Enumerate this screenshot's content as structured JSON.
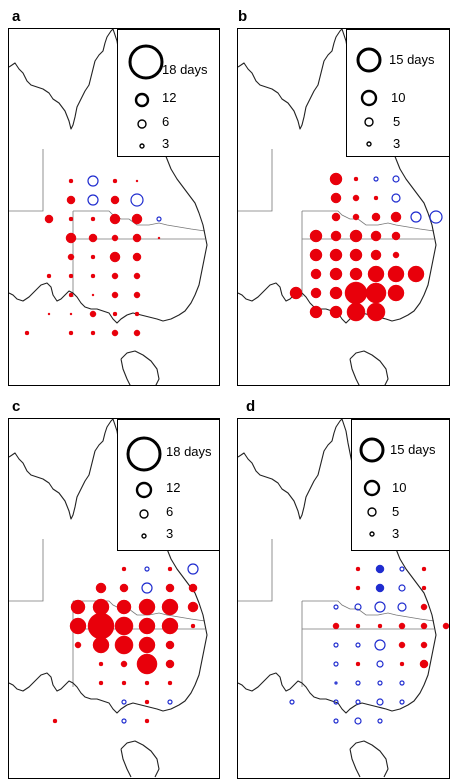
{
  "panels": [
    {
      "letter": "a",
      "legend": {
        "items": [
          {
            "label": "18 days",
            "value": 18
          },
          {
            "label": "12",
            "value": 12
          },
          {
            "label": "6",
            "value": 6
          },
          {
            "label": "3",
            "value": 3
          }
        ]
      },
      "circles": [
        [
          0,
          0,
          "r",
          2
        ],
        [
          1,
          0,
          "b",
          5
        ],
        [
          2,
          0,
          "r",
          2
        ],
        [
          3,
          0,
          "r",
          1
        ],
        [
          0,
          1,
          "r",
          4
        ],
        [
          1,
          1,
          "b",
          5
        ],
        [
          2,
          1,
          "r",
          4
        ],
        [
          3,
          1,
          "b",
          6
        ],
        [
          -1,
          2,
          "r",
          4
        ],
        [
          0,
          2,
          "r",
          2
        ],
        [
          1,
          2,
          "r",
          2
        ],
        [
          2,
          2,
          "r",
          5
        ],
        [
          3,
          2,
          "r",
          5
        ],
        [
          4,
          2,
          "b",
          2
        ],
        [
          0,
          3,
          "r",
          5
        ],
        [
          1,
          3,
          "r",
          4
        ],
        [
          2,
          3,
          "r",
          3
        ],
        [
          3,
          3,
          "r",
          4
        ],
        [
          4,
          3,
          "r",
          1
        ],
        [
          0,
          4,
          "r",
          3
        ],
        [
          1,
          4,
          "r",
          2
        ],
        [
          2,
          4,
          "r",
          5
        ],
        [
          3,
          4,
          "r",
          4
        ],
        [
          -1,
          5,
          "r",
          2
        ],
        [
          0,
          5,
          "r",
          2
        ],
        [
          1,
          5,
          "r",
          2
        ],
        [
          2,
          5,
          "r",
          3
        ],
        [
          3,
          5,
          "r",
          3
        ],
        [
          0,
          6,
          "r",
          2
        ],
        [
          1,
          6,
          "r",
          1
        ],
        [
          2,
          6,
          "r",
          3
        ],
        [
          3,
          6,
          "r",
          3
        ],
        [
          -1,
          7,
          "r",
          1
        ],
        [
          0,
          7,
          "r",
          1
        ],
        [
          1,
          7,
          "r",
          3
        ],
        [
          2,
          7,
          "r",
          2
        ],
        [
          3,
          7,
          "r",
          2
        ],
        [
          -2,
          8,
          "r",
          2
        ],
        [
          0,
          8,
          "r",
          2
        ],
        [
          1,
          8,
          "r",
          2
        ],
        [
          2,
          8,
          "r",
          3
        ],
        [
          3,
          8,
          "r",
          3
        ]
      ]
    },
    {
      "letter": "b",
      "legend": {
        "items": [
          {
            "label": "15 days",
            "value": 15
          },
          {
            "label": "10",
            "value": 10
          },
          {
            "label": "5",
            "value": 5
          },
          {
            "label": "3",
            "value": 3
          }
        ]
      },
      "circles": [
        [
          0,
          0,
          "r",
          6
        ],
        [
          1,
          0,
          "r",
          2
        ],
        [
          2,
          0,
          "b",
          2
        ],
        [
          3,
          0,
          "b",
          3
        ],
        [
          0,
          1,
          "r",
          5
        ],
        [
          1,
          1,
          "r",
          3
        ],
        [
          2,
          1,
          "r",
          2
        ],
        [
          3,
          1,
          "b",
          4
        ],
        [
          0,
          2,
          "r",
          4
        ],
        [
          1,
          2,
          "r",
          3
        ],
        [
          2,
          2,
          "r",
          4
        ],
        [
          3,
          2,
          "r",
          5
        ],
        [
          4,
          2,
          "b",
          5
        ],
        [
          5,
          2,
          "b",
          6
        ],
        [
          -1,
          3,
          "r",
          6
        ],
        [
          0,
          3,
          "r",
          5
        ],
        [
          1,
          3,
          "r",
          6
        ],
        [
          2,
          3,
          "r",
          5
        ],
        [
          3,
          3,
          "r",
          4
        ],
        [
          -1,
          4,
          "r",
          6
        ],
        [
          0,
          4,
          "r",
          6
        ],
        [
          1,
          4,
          "r",
          6
        ],
        [
          2,
          4,
          "r",
          5
        ],
        [
          3,
          4,
          "r",
          3
        ],
        [
          -1,
          5,
          "r",
          5
        ],
        [
          0,
          5,
          "r",
          6
        ],
        [
          1,
          5,
          "r",
          6
        ],
        [
          2,
          5,
          "r",
          8
        ],
        [
          3,
          5,
          "r",
          8
        ],
        [
          4,
          5,
          "r",
          8
        ],
        [
          -2,
          6,
          "r",
          6
        ],
        [
          -1,
          6,
          "r",
          5
        ],
        [
          0,
          6,
          "r",
          6
        ],
        [
          1,
          6,
          "r",
          11
        ],
        [
          2,
          6,
          "r",
          10
        ],
        [
          3,
          6,
          "r",
          8
        ],
        [
          -1,
          7,
          "r",
          6
        ],
        [
          0,
          7,
          "r",
          6
        ],
        [
          1,
          7,
          "r",
          9
        ],
        [
          2,
          7,
          "r",
          9
        ]
      ]
    },
    {
      "letter": "c",
      "legend": {
        "items": [
          {
            "label": "18 days",
            "value": 18
          },
          {
            "label": "12",
            "value": 12
          },
          {
            "label": "6",
            "value": 6
          },
          {
            "label": "3",
            "value": 3
          }
        ]
      },
      "circles": [
        [
          1,
          0,
          "r",
          2
        ],
        [
          2,
          0,
          "b",
          2
        ],
        [
          3,
          0,
          "r",
          2
        ],
        [
          4,
          0,
          "b",
          5
        ],
        [
          0,
          1,
          "r",
          5
        ],
        [
          1,
          1,
          "r",
          4
        ],
        [
          2,
          1,
          "b",
          5
        ],
        [
          3,
          1,
          "r",
          4
        ],
        [
          4,
          1,
          "r",
          4
        ],
        [
          -1,
          2,
          "r",
          7
        ],
        [
          0,
          2,
          "r",
          8
        ],
        [
          1,
          2,
          "r",
          7
        ],
        [
          2,
          2,
          "r",
          8
        ],
        [
          3,
          2,
          "r",
          8
        ],
        [
          4,
          2,
          "r",
          5
        ],
        [
          -1,
          3,
          "r",
          8
        ],
        [
          0,
          3,
          "r",
          13
        ],
        [
          1,
          3,
          "r",
          9
        ],
        [
          2,
          3,
          "r",
          8
        ],
        [
          3,
          3,
          "r",
          8
        ],
        [
          4,
          3,
          "r",
          2
        ],
        [
          -1,
          4,
          "r",
          3
        ],
        [
          0,
          4,
          "r",
          8
        ],
        [
          1,
          4,
          "r",
          9
        ],
        [
          2,
          4,
          "r",
          8
        ],
        [
          3,
          4,
          "r",
          4
        ],
        [
          0,
          5,
          "r",
          2
        ],
        [
          1,
          5,
          "r",
          3
        ],
        [
          2,
          5,
          "r",
          10
        ],
        [
          3,
          5,
          "r",
          4
        ],
        [
          0,
          6,
          "r",
          2
        ],
        [
          1,
          6,
          "r",
          2
        ],
        [
          2,
          6,
          "r",
          2
        ],
        [
          3,
          6,
          "r",
          2
        ],
        [
          1,
          7,
          "b",
          2
        ],
        [
          2,
          7,
          "r",
          2
        ],
        [
          3,
          7,
          "b",
          2
        ],
        [
          -2,
          8,
          "r",
          2
        ],
        [
          1,
          8,
          "b",
          2
        ],
        [
          2,
          8,
          "r",
          2
        ]
      ]
    },
    {
      "letter": "d",
      "legend": {
        "items": [
          {
            "label": "15 days",
            "value": 15
          },
          {
            "label": "10",
            "value": 10
          },
          {
            "label": "5",
            "value": 5
          },
          {
            "label": "3",
            "value": 3
          }
        ]
      },
      "circles": [
        [
          1,
          0,
          "r",
          2
        ],
        [
          2,
          0,
          "B",
          4
        ],
        [
          3,
          0,
          "b",
          2
        ],
        [
          4,
          0,
          "r",
          2
        ],
        [
          1,
          1,
          "r",
          2
        ],
        [
          2,
          1,
          "B",
          4
        ],
        [
          3,
          1,
          "b",
          3
        ],
        [
          4,
          1,
          "r",
          2
        ],
        [
          0,
          2,
          "b",
          2
        ],
        [
          1,
          2,
          "b",
          3
        ],
        [
          2,
          2,
          "b",
          5
        ],
        [
          3,
          2,
          "b",
          4
        ],
        [
          4,
          2,
          "r",
          3
        ],
        [
          0,
          3,
          "r",
          3
        ],
        [
          1,
          3,
          "r",
          2
        ],
        [
          2,
          3,
          "r",
          2
        ],
        [
          3,
          3,
          "r",
          3
        ],
        [
          4,
          3,
          "r",
          3
        ],
        [
          5,
          3,
          "r",
          3
        ],
        [
          0,
          4,
          "b",
          2
        ],
        [
          1,
          4,
          "b",
          2
        ],
        [
          2,
          4,
          "b",
          5
        ],
        [
          3,
          4,
          "r",
          3
        ],
        [
          4,
          4,
          "r",
          3
        ],
        [
          0,
          5,
          "b",
          2
        ],
        [
          1,
          5,
          "r",
          2
        ],
        [
          2,
          5,
          "b",
          3
        ],
        [
          3,
          5,
          "r",
          2
        ],
        [
          4,
          5,
          "r",
          4
        ],
        [
          0,
          6,
          "b",
          1
        ],
        [
          1,
          6,
          "b",
          2
        ],
        [
          2,
          6,
          "b",
          2
        ],
        [
          3,
          6,
          "b",
          2
        ],
        [
          -2,
          7,
          "b",
          2
        ],
        [
          0,
          7,
          "b",
          2
        ],
        [
          1,
          7,
          "b",
          2
        ],
        [
          2,
          7,
          "b",
          3
        ],
        [
          3,
          7,
          "b",
          2
        ],
        [
          0,
          8,
          "b",
          2
        ],
        [
          1,
          8,
          "b",
          3
        ],
        [
          2,
          8,
          "b",
          2
        ]
      ]
    }
  ],
  "colors": {
    "red": "#e8000b",
    "blue": "#1f2ccf",
    "coast": "#222222",
    "border": "#777777"
  }
}
